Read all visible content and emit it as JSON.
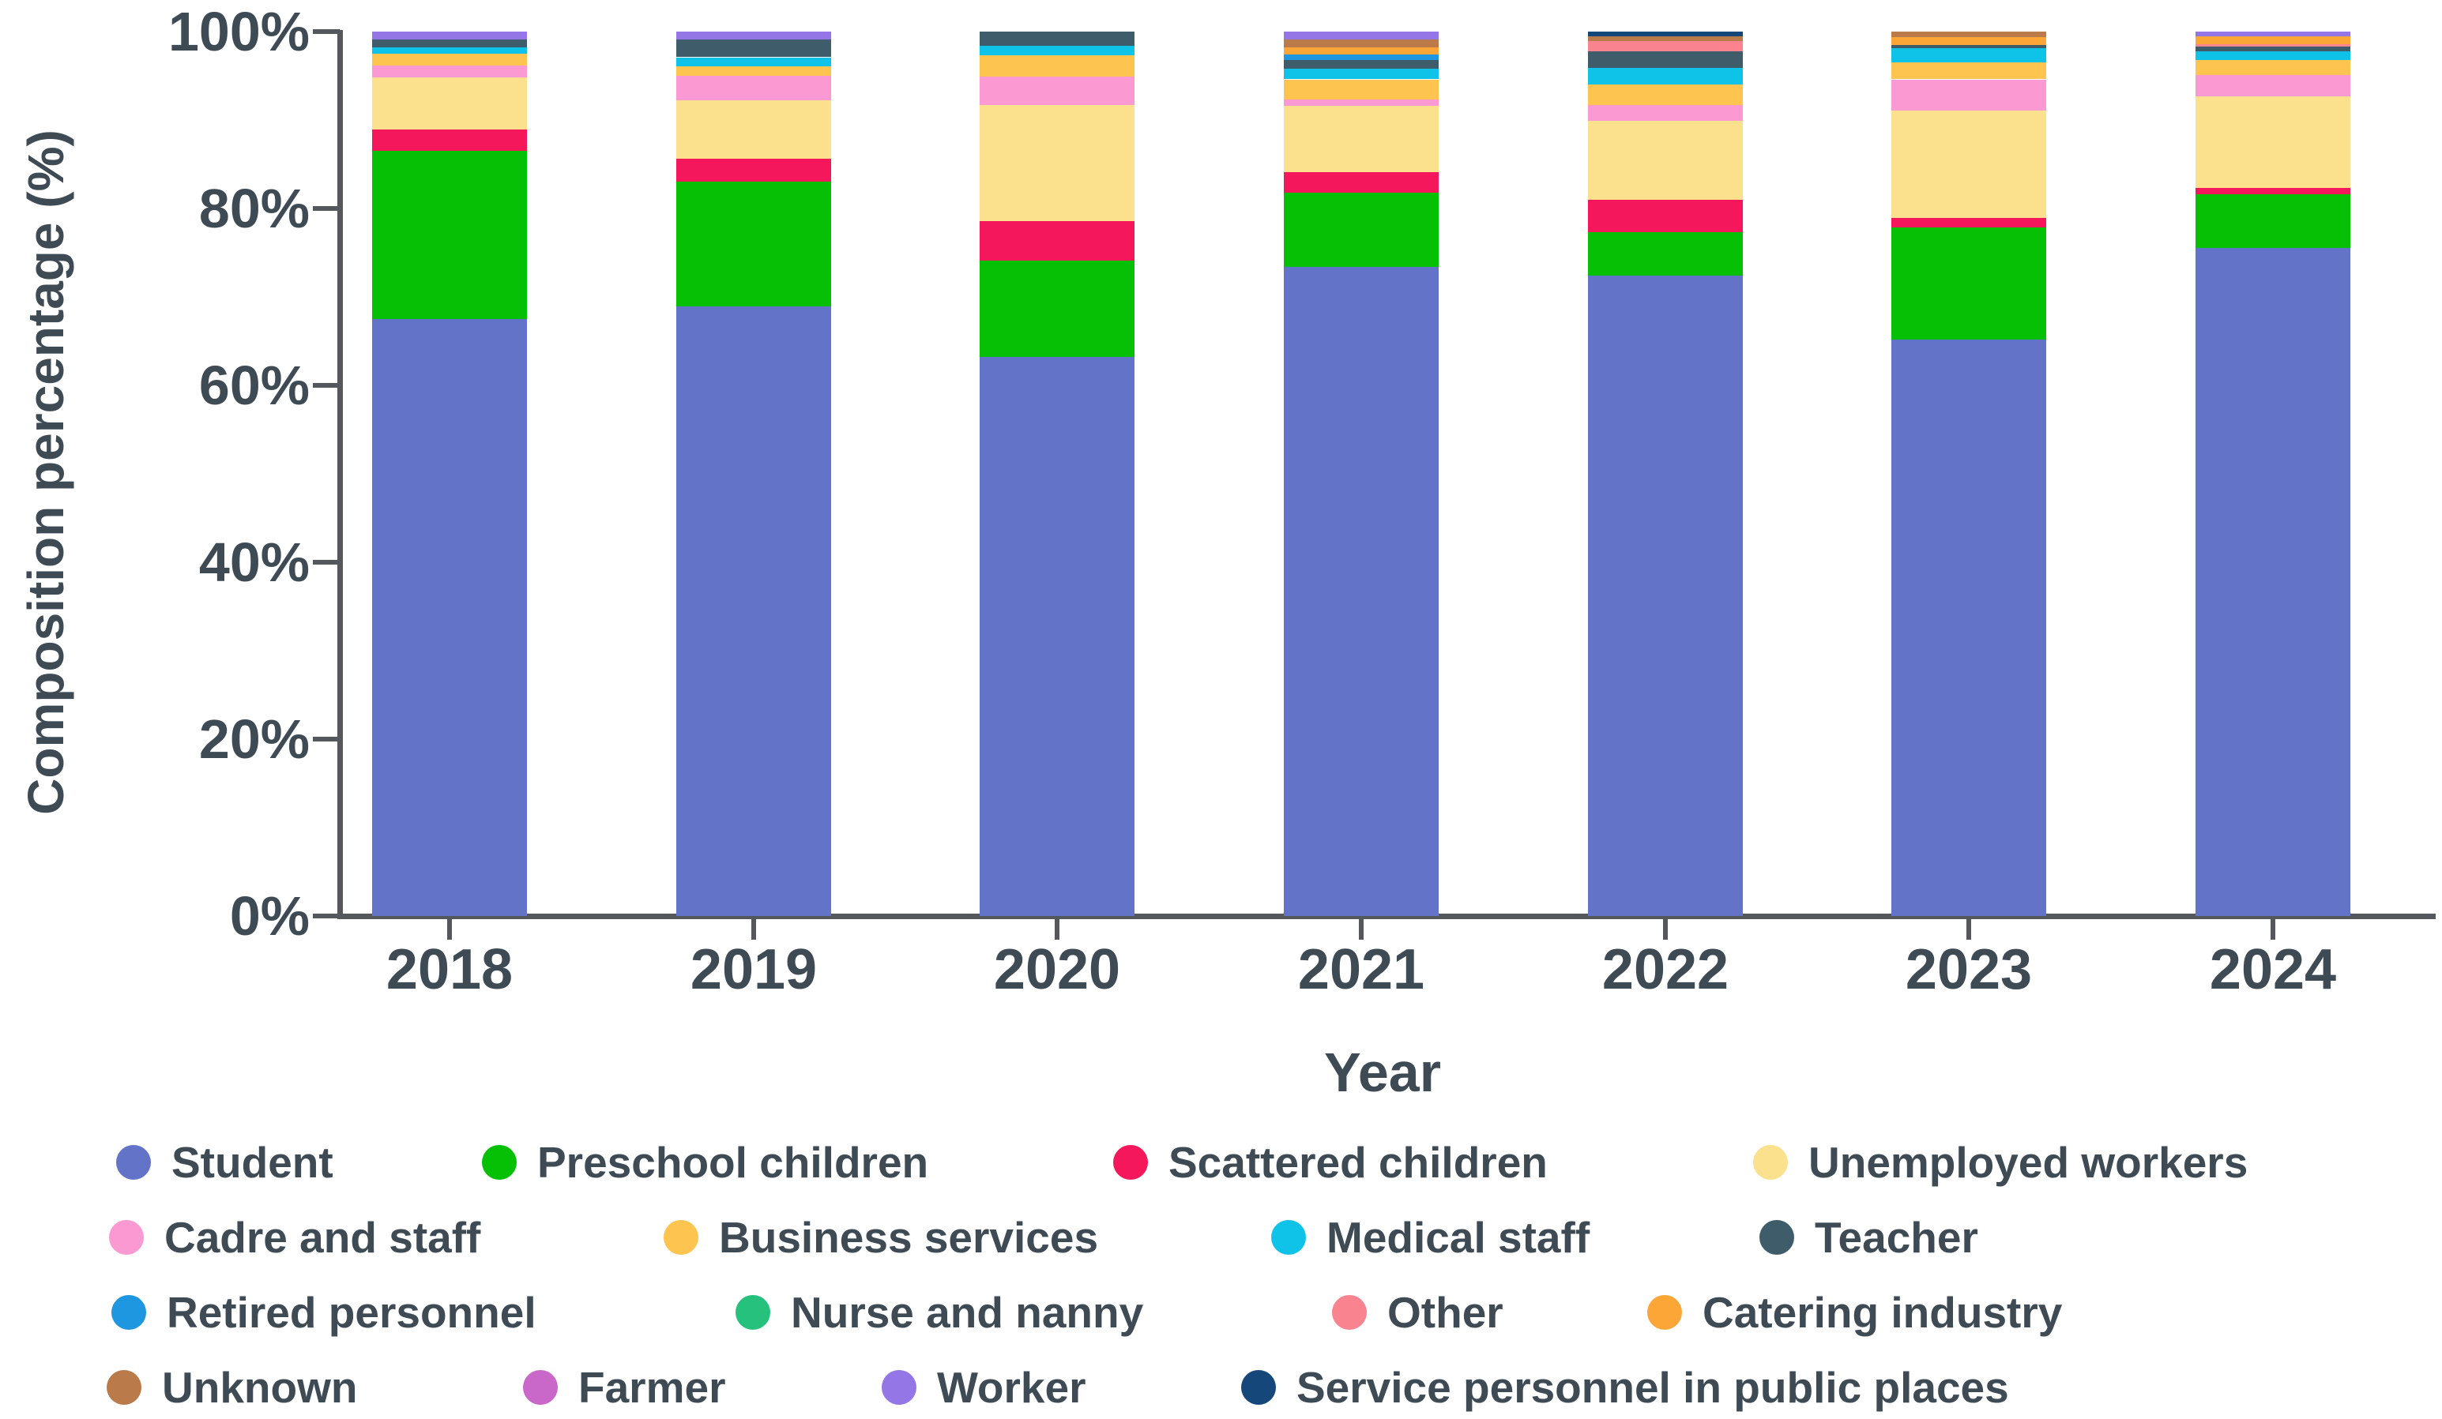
{
  "chart_data": {
    "type": "bar",
    "stacked": true,
    "title": "",
    "xlabel": "Year",
    "ylabel": "Composition percentage (%)",
    "ylim": [
      0,
      100
    ],
    "grid": false,
    "legend_position": "bottom",
    "yticks": [
      {
        "value": 0,
        "label": "0%"
      },
      {
        "value": 20,
        "label": "20%"
      },
      {
        "value": 40,
        "label": "40%"
      },
      {
        "value": 60,
        "label": "60%"
      },
      {
        "value": 80,
        "label": "80%"
      },
      {
        "value": 100,
        "label": "100%"
      }
    ],
    "categories": [
      "2018",
      "2019",
      "2020",
      "2021",
      "2022",
      "2023",
      "2024"
    ],
    "series": [
      {
        "name": "Student",
        "color": "#6373c8",
        "values": [
          67.5,
          68.9,
          63.2,
          73.4,
          72.4,
          65.2,
          75.5
        ]
      },
      {
        "name": "Preschool children",
        "color": "#06c006",
        "values": [
          19.0,
          14.1,
          10.9,
          8.4,
          4.9,
          12.7,
          6.1
        ]
      },
      {
        "name": "Scattered children",
        "color": "#f5175c",
        "values": [
          2.4,
          2.6,
          4.5,
          2.3,
          3.7,
          1.0,
          0.7
        ]
      },
      {
        "name": "Unemployed workers",
        "color": "#fbe18e",
        "values": [
          5.9,
          6.6,
          13.1,
          7.5,
          8.9,
          12.2,
          10.4
        ]
      },
      {
        "name": "Cadre and staff",
        "color": "#fa99d2",
        "values": [
          1.4,
          2.8,
          3.2,
          0.7,
          1.8,
          3.5,
          2.4
        ]
      },
      {
        "name": "Business services",
        "color": "#fdc44f",
        "values": [
          1.3,
          1.1,
          2.4,
          2.3,
          2.3,
          1.9,
          1.7
        ]
      },
      {
        "name": "Medical staff",
        "color": "#0fc3e8",
        "values": [
          0.7,
          1.0,
          1.1,
          1.2,
          1.9,
          1.6,
          1.0
        ]
      },
      {
        "name": "Teacher",
        "color": "#3f5c6b",
        "values": [
          0.9,
          2.0,
          1.6,
          1.0,
          1.9,
          0.4,
          0.5
        ]
      },
      {
        "name": "Retired personnel",
        "color": "#1e96e0",
        "values": [
          0.0,
          0.0,
          0.0,
          0.6,
          0.0,
          0.0,
          0.0
        ]
      },
      {
        "name": "Nurse and nanny",
        "color": "#27c17e",
        "values": [
          0.0,
          0.0,
          0.0,
          0.0,
          0.0,
          0.0,
          0.0
        ]
      },
      {
        "name": "Other",
        "color": "#f9838e",
        "values": [
          0.0,
          0.0,
          0.0,
          0.0,
          1.1,
          0.0,
          0.3
        ]
      },
      {
        "name": "Catering industry",
        "color": "#fba637",
        "values": [
          0.0,
          0.0,
          0.0,
          0.8,
          0.0,
          0.9,
          0.9
        ]
      },
      {
        "name": "Unknown",
        "color": "#bb7a49",
        "values": [
          0.0,
          0.0,
          0.0,
          0.9,
          0.6,
          0.6,
          0.0
        ]
      },
      {
        "name": "Farmer",
        "color": "#c968c9",
        "values": [
          0.0,
          0.0,
          0.0,
          0.0,
          0.0,
          0.0,
          0.0
        ]
      },
      {
        "name": "Worker",
        "color": "#9476e6",
        "values": [
          0.9,
          0.9,
          0.0,
          0.9,
          0.0,
          0.0,
          0.5
        ]
      },
      {
        "name": "Service personnel in public places",
        "color": "#16477b",
        "values": [
          0.0,
          0.0,
          0.0,
          0.0,
          0.5,
          0.0,
          0.0
        ]
      }
    ],
    "legend_rows": [
      [
        "Student",
        "Preschool children",
        "Scattered children",
        "Unemployed workers"
      ],
      [
        "Cadre and staff",
        "Business services",
        "Medical staff",
        "Teacher"
      ],
      [
        "Retired personnel",
        "Nurse and nanny",
        "Other",
        "Catering industry"
      ],
      [
        "Unknown",
        "Farmer",
        "Worker",
        "Service personnel in public places"
      ]
    ]
  }
}
